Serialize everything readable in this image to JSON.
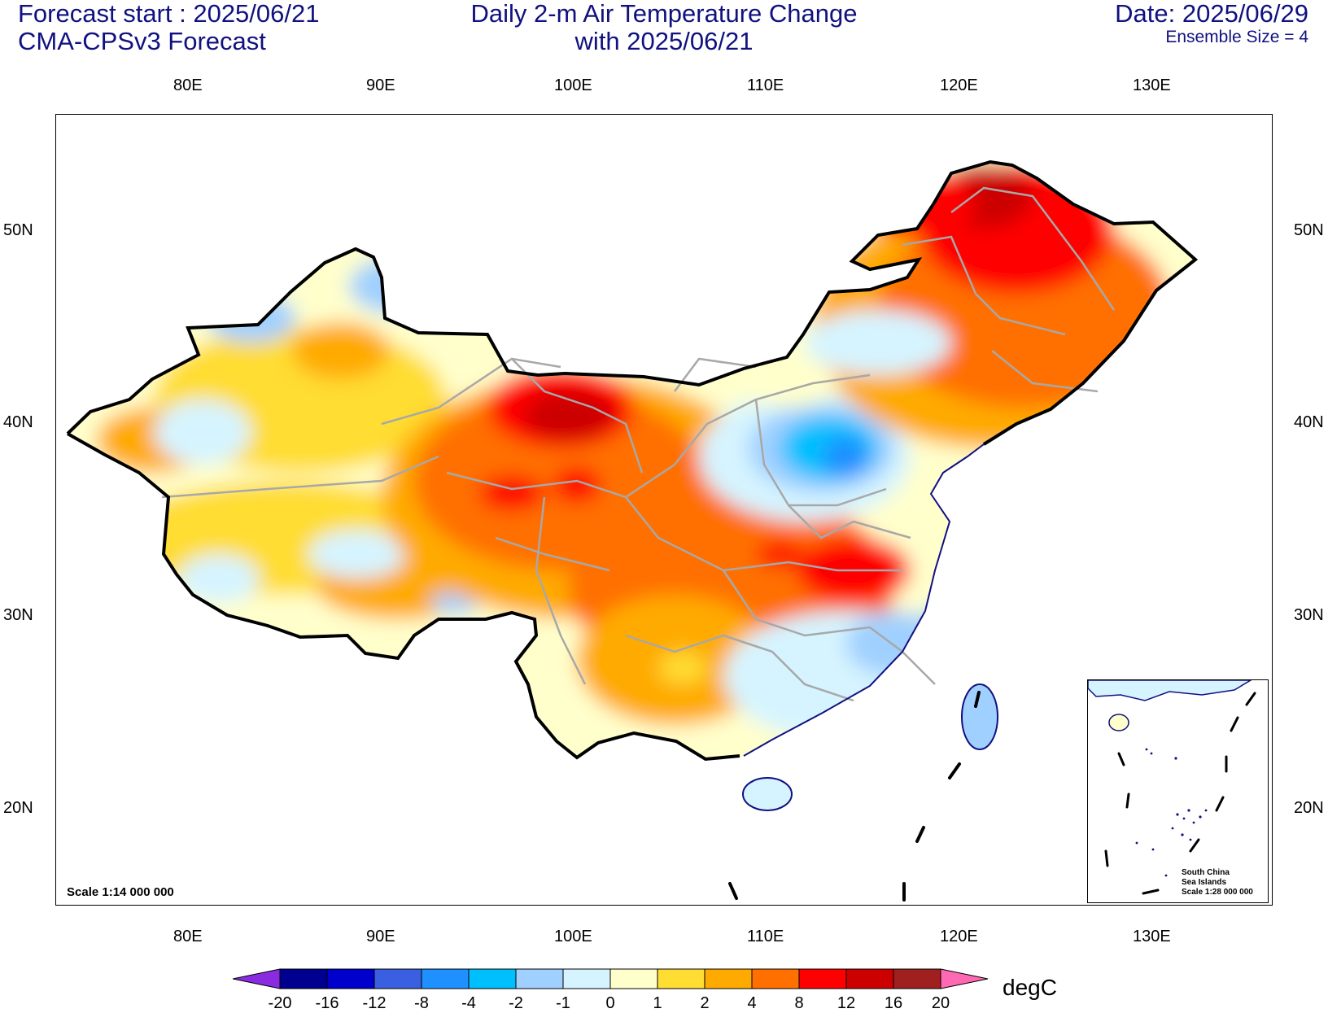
{
  "header": {
    "left_line1": "Forecast start : 2025/06/21",
    "left_line2": "CMA-CPSv3 Forecast",
    "center_line1": "Daily 2-m Air Temperature Change",
    "center_line2": "with 2025/06/21",
    "right_line1": "Date: 2025/06/29",
    "ensemble": "Ensemble Size = 4"
  },
  "axes": {
    "lon_labels": [
      "80E",
      "90E",
      "100E",
      "110E",
      "120E",
      "130E"
    ],
    "lat_labels": [
      "50N",
      "40N",
      "30N",
      "20N"
    ]
  },
  "map": {
    "scale_main": "Scale 1:14 000 000",
    "inset_caption": [
      "South China",
      "Sea Islands",
      "Scale 1:28 000 000"
    ]
  },
  "colorbar": {
    "units": "degC",
    "ticks": [
      "-20",
      "-16",
      "-12",
      "-8",
      "-4",
      "-2",
      "-1",
      "0",
      "1",
      "2",
      "4",
      "8",
      "12",
      "16",
      "20"
    ],
    "colors": [
      "#000090",
      "#0000cc",
      "#3a5fe0",
      "#1e90ff",
      "#00bfff",
      "#a0d0ff",
      "#d6f4ff",
      "#ffffcc",
      "#ffdd33",
      "#ffaa00",
      "#ff7000",
      "#ff0000",
      "#cc0000",
      "#a02020"
    ],
    "low_extend_color": "#8a2be2",
    "high_extend_color": "#ff69b4"
  }
}
